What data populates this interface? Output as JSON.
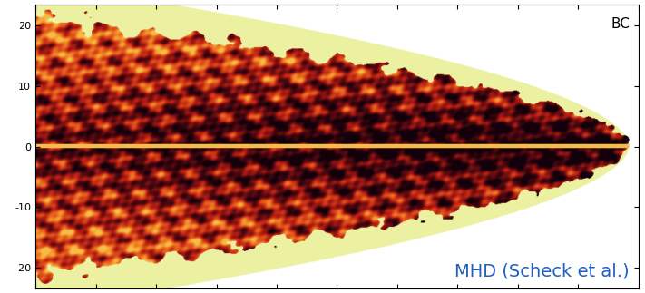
{
  "chart_data": {
    "type": "image",
    "xlim": [
      0,
      100
    ],
    "xticks": [
      0,
      10,
      20,
      30,
      40,
      50,
      60,
      70,
      80,
      90,
      100
    ],
    "ylim": [
      -23.5,
      23.5
    ],
    "yticks": [
      -20,
      -10,
      0,
      10,
      20
    ],
    "tick_labels": "y",
    "annotations": [
      "BC",
      "MHD (Scheck et al.)"
    ]
  }
}
